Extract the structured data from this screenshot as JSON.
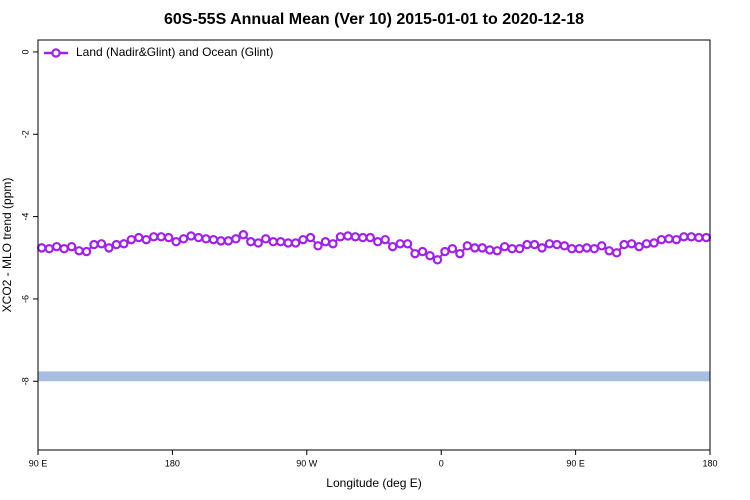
{
  "chart_data": {
    "type": "line",
    "title": "60S-55S Annual Mean (Ver 10)   2015-01-01 to 2020-12-18",
    "x_label": "Longitude (deg E)",
    "y_label": "XCO2 - MLO trend (ppm)",
    "xlim": [
      90,
      540
    ],
    "xticks": [
      {
        "value": 90,
        "label": "90 E"
      },
      180,
      {
        "value": 270,
        "label": "90 W"
      },
      {
        "value": 360,
        "label": "0"
      },
      {
        "value": 450,
        "label": "90 E"
      },
      {
        "value": 540,
        "label": "180"
      }
    ],
    "ylim": [
      -9.67,
      0.29
    ],
    "yticks": [
      0,
      -2,
      -4,
      -6,
      -8
    ],
    "legend": "top-left",
    "band": {
      "values": [
        -8.0,
        -7.76
      ],
      "color": "#a8bedf"
    },
    "x": [
      92.5,
      97.5,
      102.5,
      107.5,
      112.5,
      117.5,
      122.5,
      127.5,
      132.5,
      137.5,
      142.5,
      147.5,
      152.5,
      157.5,
      162.5,
      167.5,
      172.5,
      177.5,
      182.5,
      187.5,
      192.5,
      197.5,
      202.5,
      207.5,
      212.5,
      217.5,
      222.5,
      227.5,
      232.5,
      237.5,
      242.5,
      247.5,
      252.5,
      257.5,
      262.5,
      267.5,
      272.5,
      277.5,
      282.5,
      287.5,
      292.5,
      297.5,
      302.5,
      307.5,
      312.5,
      317.5,
      322.5,
      327.5,
      332.5,
      337.5,
      342.5,
      347.5,
      352.5,
      357.5,
      362.5,
      367.5,
      372.5,
      377.5,
      382.5,
      387.5,
      392.5,
      397.5,
      402.5,
      407.5,
      412.5,
      417.5,
      422.5,
      427.5,
      432.5,
      437.5,
      442.5,
      447.5,
      452.5,
      457.5,
      462.5,
      467.5,
      472.5,
      477.5,
      482.5,
      487.5,
      492.5,
      497.5,
      502.5,
      507.5,
      512.5,
      517.5,
      522.5,
      527.5,
      532.5,
      537.5
    ],
    "series": [
      {
        "name": "Land (Nadir&Glint) and Ocean (Glint)",
        "color": "#a020f0",
        "values": [
          -4.76,
          -4.78,
          -4.73,
          -4.78,
          -4.73,
          -4.83,
          -4.85,
          -4.68,
          -4.66,
          -4.76,
          -4.68,
          -4.66,
          -4.56,
          -4.51,
          -4.56,
          -4.49,
          -4.49,
          -4.51,
          -4.61,
          -4.54,
          -4.47,
          -4.51,
          -4.54,
          -4.56,
          -4.59,
          -4.59,
          -4.54,
          -4.44,
          -4.61,
          -4.64,
          -4.54,
          -4.61,
          -4.61,
          -4.64,
          -4.64,
          -4.56,
          -4.51,
          -4.71,
          -4.61,
          -4.66,
          -4.49,
          -4.47,
          -4.49,
          -4.51,
          -4.51,
          -4.61,
          -4.56,
          -4.73,
          -4.66,
          -4.66,
          -4.9,
          -4.85,
          -4.95,
          -5.05,
          -4.85,
          -4.78,
          -4.9,
          -4.71,
          -4.76,
          -4.76,
          -4.81,
          -4.83,
          -4.73,
          -4.78,
          -4.78,
          -4.68,
          -4.68,
          -4.76,
          -4.66,
          -4.68,
          -4.71,
          -4.78,
          -4.78,
          -4.76,
          -4.78,
          -4.71,
          -4.83,
          -4.88,
          -4.68,
          -4.66,
          -4.73,
          -4.66,
          -4.64,
          -4.56,
          -4.54,
          -4.56,
          -4.49,
          -4.49,
          -4.51,
          -4.51
        ]
      }
    ]
  }
}
